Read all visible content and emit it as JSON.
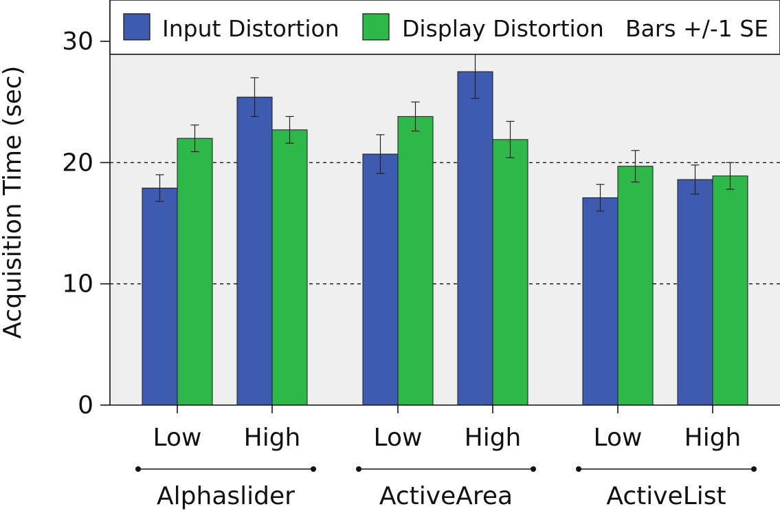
{
  "chart_data": {
    "type": "bar",
    "ylabel": "Acquisition Time (sec)",
    "ylim": [
      0,
      30
    ],
    "yticks": [
      0,
      10,
      20,
      30
    ],
    "gridlines": [
      10,
      20
    ],
    "groups": [
      {
        "name": "Alphaslider",
        "categories": [
          "Low",
          "High"
        ]
      },
      {
        "name": "ActiveArea",
        "categories": [
          "Low",
          "High"
        ]
      },
      {
        "name": "ActiveList",
        "categories": [
          "Low",
          "High"
        ]
      }
    ],
    "series": [
      {
        "name": "Input Distortion",
        "color": "#3f5bb0",
        "values": [
          17.9,
          25.4,
          20.7,
          27.5,
          17.1,
          18.6
        ],
        "errors": [
          1.1,
          1.6,
          1.6,
          2.2,
          1.1,
          1.2
        ]
      },
      {
        "name": "Display Distortion",
        "color": "#2eb84a",
        "values": [
          22.0,
          22.7,
          23.8,
          21.9,
          19.7,
          18.9
        ],
        "errors": [
          1.1,
          1.1,
          1.2,
          1.5,
          1.3,
          1.1
        ]
      }
    ],
    "legend_note": "Bars +/-1 SE",
    "legend_position": "top"
  }
}
